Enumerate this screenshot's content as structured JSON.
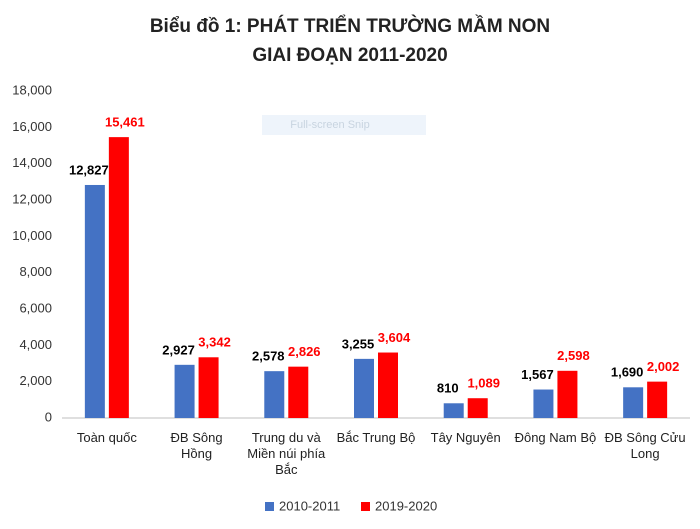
{
  "chart_data": {
    "type": "bar",
    "title": [
      "Biểu đồ 1: PHÁT TRIỂN TRƯỜNG MẦM NON",
      "GIAI ĐOẠN 2011-2020"
    ],
    "watermark": "Full-screen Snip",
    "categories": [
      "Toàn quốc",
      "ĐB Sông Hồng",
      "Trung du và Miền núi phía Bắc",
      "Bắc Trung Bộ",
      "Tây Nguyên",
      "Đông Nam Bộ",
      "ĐB Sông Cửu Long"
    ],
    "series": [
      {
        "name": "2010-2011",
        "color": "#4472c4",
        "label_color": "#000000",
        "values": [
          12827,
          2927,
          2578,
          3255,
          810,
          1567,
          1690
        ],
        "value_labels": [
          "12,827",
          "2,927",
          "2,578",
          "3,255",
          "810",
          "1,567",
          "1,690"
        ]
      },
      {
        "name": "2019-2020",
        "color": "#ff0000",
        "label_color": "#ff0000",
        "values": [
          15461,
          3342,
          2826,
          3604,
          1089,
          2598,
          2002
        ],
        "value_labels": [
          "15,461",
          "3,342",
          "2,826",
          "3,604",
          "1,089",
          "2,598",
          "2,002"
        ]
      }
    ],
    "ylim": [
      0,
      18000
    ],
    "yticks": [
      0,
      {
        "value": 2000,
        "label": "2,000"
      },
      {
        "value": 4000,
        "label": "4,000"
      },
      {
        "value": 6000,
        "label": "6,000"
      },
      {
        "value": 8000,
        "label": "8,000"
      },
      {
        "value": 10000,
        "label": "10,000"
      },
      {
        "value": 12000,
        "label": "12,000"
      },
      {
        "value": 14000,
        "label": "14,000"
      },
      {
        "value": 16000,
        "label": "16,000"
      },
      {
        "value": 18000,
        "label": "18,000"
      }
    ],
    "grid": false,
    "legend": "bottom"
  }
}
